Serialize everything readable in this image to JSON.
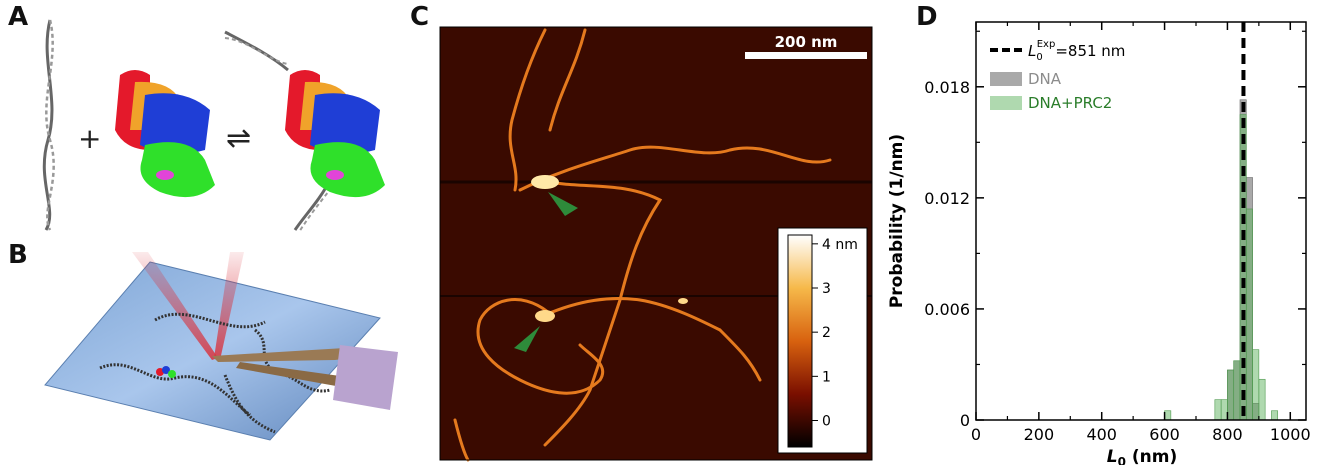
{
  "panels": {
    "a": "A",
    "b": "B",
    "c": "C",
    "d": "D"
  },
  "panel_a": {
    "plus": "+",
    "equilibrium": "⇌"
  },
  "panel_c": {
    "scalebar_label": "200 nm",
    "colorbar": {
      "ticks": [
        "4 nm",
        "3",
        "2",
        "1",
        "0"
      ],
      "values": [
        4,
        3,
        2,
        1,
        0
      ]
    },
    "colors": {
      "background": "#3a0a00",
      "strand": "#e57a1e",
      "arrow": "#2e8b3a"
    }
  },
  "chart_data": {
    "type": "bar",
    "xlabel": "L0 (nm)",
    "xlabel_main": "L",
    "xlabel_sub": "0",
    "xlabel_unit": " (nm)",
    "ylabel": "Probability (1/nm)",
    "xlim": [
      0,
      1050
    ],
    "ylim": [
      0,
      0.0215
    ],
    "xticks": [
      0,
      200,
      400,
      600,
      800,
      1000
    ],
    "yticks": [
      0,
      0.006,
      0.012,
      0.018
    ],
    "ytick_labels": [
      "0",
      "0.006",
      "0.012",
      "0.018"
    ],
    "bin_width": 20,
    "reference_line": {
      "x": 851,
      "label_main": "L",
      "label_sub": "0",
      "label_sup": "Exp",
      "label_suffix": "=851 nm"
    },
    "series": [
      {
        "name": "DNA",
        "color": "#8c8c8c",
        "bins": [
          {
            "x0": 800,
            "value": 0.0027
          },
          {
            "x0": 820,
            "value": 0.0032
          },
          {
            "x0": 840,
            "value": 0.0173
          },
          {
            "x0": 860,
            "value": 0.0131
          },
          {
            "x0": 880,
            "value": 0.0009
          }
        ]
      },
      {
        "name": "DNA+PRC2",
        "color": "#5fb35f",
        "bins": [
          {
            "x0": 600,
            "value": 0.0005
          },
          {
            "x0": 760,
            "value": 0.0011
          },
          {
            "x0": 780,
            "value": 0.0011
          },
          {
            "x0": 800,
            "value": 0.0027
          },
          {
            "x0": 820,
            "value": 0.0032
          },
          {
            "x0": 840,
            "value": 0.0165
          },
          {
            "x0": 860,
            "value": 0.0114
          },
          {
            "x0": 880,
            "value": 0.0038
          },
          {
            "x0": 900,
            "value": 0.0022
          },
          {
            "x0": 940,
            "value": 0.0005
          }
        ]
      }
    ],
    "legend_placement": "top-left",
    "grid": false
  }
}
